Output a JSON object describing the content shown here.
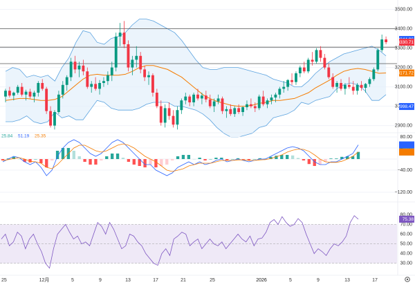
{
  "chart_data": [
    {
      "panel": "price",
      "type": "candlestick",
      "title": "",
      "y_ticks": [
        2900,
        3000,
        3100,
        3200,
        3300,
        3400,
        3500
      ],
      "ylim": [
        2870,
        3520
      ],
      "last_price": 3330.71,
      "price_labels": [
        {
          "text": "3344.96",
          "value": 3344.96,
          "color": "#2962ff"
        },
        {
          "text": "3330.71",
          "value": 3330.71,
          "color": "#f23645"
        },
        {
          "text": "3171.72",
          "value": 3171.72,
          "color": "#f57c00"
        },
        {
          "text": "2998.47",
          "value": 2998.47,
          "color": "#2962ff"
        }
      ],
      "horizontal_levels": [
        3400,
        3305,
        3220
      ],
      "candles": [
        [
          3050,
          3090,
          3020,
          3080
        ],
        [
          3080,
          3100,
          3045,
          3055
        ],
        [
          3055,
          3075,
          3030,
          3070
        ],
        [
          3070,
          3110,
          3060,
          3100
        ],
        [
          3100,
          3120,
          3050,
          3060
        ],
        [
          3060,
          3085,
          3030,
          3075
        ],
        [
          3075,
          3090,
          3040,
          3050
        ],
        [
          3050,
          3080,
          3020,
          3070
        ],
        [
          3070,
          3130,
          3050,
          3120
        ],
        [
          3120,
          3140,
          3080,
          3090
        ],
        [
          3090,
          3100,
          2960,
          2975
        ],
        [
          2975,
          3000,
          2890,
          2900
        ],
        [
          2900,
          2980,
          2880,
          2970
        ],
        [
          2970,
          3080,
          2960,
          3060
        ],
        [
          3060,
          3130,
          3040,
          3110
        ],
        [
          3110,
          3160,
          3080,
          3150
        ],
        [
          3150,
          3250,
          3130,
          3230
        ],
        [
          3230,
          3260,
          3170,
          3190
        ],
        [
          3190,
          3230,
          3150,
          3210
        ],
        [
          3210,
          3240,
          3160,
          3180
        ],
        [
          3180,
          3200,
          3090,
          3100
        ],
        [
          3100,
          3130,
          3070,
          3115
        ],
        [
          3115,
          3150,
          3080,
          3090
        ],
        [
          3090,
          3135,
          3060,
          3120
        ],
        [
          3120,
          3150,
          3100,
          3130
        ],
        [
          3130,
          3180,
          3110,
          3160
        ],
        [
          3160,
          3230,
          3130,
          3200
        ],
        [
          3200,
          3380,
          3180,
          3360
        ],
        [
          3360,
          3430,
          3310,
          3380
        ],
        [
          3380,
          3440,
          3300,
          3320
        ],
        [
          3320,
          3340,
          3180,
          3200
        ],
        [
          3200,
          3260,
          3160,
          3240
        ],
        [
          3240,
          3310,
          3200,
          3260
        ],
        [
          3260,
          3280,
          3170,
          3190
        ],
        [
          3190,
          3210,
          3130,
          3150
        ],
        [
          3150,
          3180,
          3110,
          3160
        ],
        [
          3160,
          3170,
          3050,
          3070
        ],
        [
          3070,
          3090,
          2990,
          3000
        ],
        [
          3000,
          3030,
          2900,
          2915
        ],
        [
          2915,
          3010,
          2890,
          2990
        ],
        [
          2990,
          3020,
          2930,
          2950
        ],
        [
          2950,
          2980,
          2890,
          2905
        ],
        [
          2905,
          3000,
          2880,
          2980
        ],
        [
          2980,
          3040,
          2960,
          3030
        ],
        [
          3030,
          3070,
          3010,
          3050
        ],
        [
          3050,
          3060,
          3000,
          3020
        ],
        [
          3020,
          3070,
          3000,
          3060
        ],
        [
          3060,
          3090,
          3030,
          3040
        ],
        [
          3040,
          3070,
          3010,
          3055
        ],
        [
          3055,
          3080,
          3020,
          3035
        ],
        [
          3035,
          3060,
          2990,
          3000
        ],
        [
          3000,
          3040,
          2970,
          3025
        ],
        [
          3025,
          3060,
          3010,
          3040
        ],
        [
          3040,
          3050,
          2960,
          2975
        ],
        [
          2975,
          3000,
          2940,
          2985
        ],
        [
          2985,
          3010,
          2950,
          2960
        ],
        [
          2960,
          3000,
          2945,
          2990
        ],
        [
          2990,
          3010,
          2960,
          2970
        ],
        [
          2970,
          3000,
          2950,
          2995
        ],
        [
          2995,
          3030,
          2980,
          3010
        ],
        [
          3010,
          3040,
          2990,
          3000
        ],
        [
          3000,
          3020,
          2970,
          2990
        ],
        [
          2990,
          3060,
          2980,
          3050
        ],
        [
          3050,
          3080,
          3000,
          3010
        ],
        [
          3010,
          3040,
          2990,
          3030
        ],
        [
          3030,
          3060,
          3010,
          3045
        ],
        [
          3045,
          3070,
          3020,
          3060
        ],
        [
          3060,
          3100,
          3040,
          3090
        ],
        [
          3090,
          3130,
          3070,
          3100
        ],
        [
          3100,
          3140,
          3080,
          3135
        ],
        [
          3135,
          3170,
          3110,
          3125
        ],
        [
          3125,
          3180,
          3110,
          3170
        ],
        [
          3170,
          3210,
          3150,
          3200
        ],
        [
          3200,
          3230,
          3170,
          3180
        ],
        [
          3180,
          3250,
          3170,
          3240
        ],
        [
          3240,
          3280,
          3210,
          3230
        ],
        [
          3230,
          3300,
          3220,
          3290
        ],
        [
          3290,
          3310,
          3230,
          3250
        ],
        [
          3250,
          3270,
          3190,
          3200
        ],
        [
          3200,
          3220,
          3140,
          3150
        ],
        [
          3150,
          3170,
          3090,
          3100
        ],
        [
          3100,
          3130,
          3070,
          3120
        ],
        [
          3120,
          3140,
          3080,
          3090
        ],
        [
          3090,
          3120,
          3060,
          3110
        ],
        [
          3110,
          3150,
          3090,
          3100
        ],
        [
          3100,
          3130,
          3060,
          3080
        ],
        [
          3080,
          3120,
          3060,
          3110
        ],
        [
          3110,
          3130,
          3080,
          3095
        ],
        [
          3095,
          3120,
          3070,
          3115
        ],
        [
          3115,
          3150,
          3100,
          3140
        ],
        [
          3140,
          3200,
          3130,
          3190
        ],
        [
          3190,
          3300,
          3180,
          3290
        ],
        [
          3290,
          3370,
          3280,
          3345
        ],
        [
          3345,
          3360,
          3320,
          3330.71
        ]
      ],
      "bollinger_upper": [
        3180,
        3200,
        3190,
        3150,
        3160,
        3150,
        3160,
        3130,
        3200,
        3250,
        3330,
        3390,
        3380,
        3330,
        3320,
        3350,
        3360,
        3380,
        3420,
        3450,
        3450,
        3440,
        3420,
        3400,
        3380,
        3340,
        3290,
        3240,
        3200,
        3190,
        3190,
        3200,
        3200,
        3200,
        3190,
        3180,
        3170,
        3160,
        3140,
        3130,
        3120,
        3100,
        3100,
        3130,
        3170,
        3200,
        3230,
        3250,
        3270,
        3280,
        3290,
        3300,
        3310,
        3290,
        3260
      ],
      "bollinger_basis": [
        3050,
        3060,
        3060,
        3050,
        3040,
        3030,
        3040,
        3050,
        3070,
        3100,
        3130,
        3160,
        3180,
        3180,
        3170,
        3170,
        3170,
        3180,
        3200,
        3220,
        3230,
        3230,
        3220,
        3210,
        3190,
        3170,
        3140,
        3110,
        3080,
        3060,
        3040,
        3030,
        3020,
        3020,
        3020,
        3020,
        3030,
        3030,
        3040,
        3040,
        3040,
        3040,
        3060,
        3070,
        3100,
        3120,
        3140,
        3170,
        3190,
        3200,
        3200,
        3190,
        3170,
        3160,
        3160
      ],
      "bollinger_lower": [
        2920,
        2920,
        2930,
        2950,
        2920,
        2910,
        2920,
        2970,
        2940,
        2950,
        2930,
        2930,
        2980,
        3030,
        3020,
        2990,
        2980,
        2980,
        2980,
        2990,
        3010,
        3020,
        3020,
        3020,
        3000,
        3000,
        2990,
        2980,
        2960,
        2930,
        2890,
        2860,
        2840,
        2840,
        2850,
        2860,
        2890,
        2900,
        2940,
        2950,
        2960,
        2980,
        3020,
        3010,
        3030,
        3040,
        3050,
        3090,
        3110,
        3120,
        3110,
        3080,
        3030,
        3030,
        3060
      ],
      "ma_orange": [
        3030,
        3035,
        3040,
        3040,
        3035,
        3030,
        3030,
        3035,
        3050,
        3080,
        3110,
        3140,
        3160,
        3165,
        3160,
        3160,
        3160,
        3165,
        3180,
        3200,
        3210,
        3210,
        3200,
        3190,
        3170,
        3150,
        3120,
        3090,
        3060,
        3040,
        3025,
        3015,
        3005,
        3000,
        3000,
        3005,
        3015,
        3020,
        3030,
        3030,
        3035,
        3040,
        3055,
        3070,
        3095,
        3115,
        3135,
        3160,
        3180,
        3190,
        3195,
        3190,
        3180,
        3170,
        3172
      ]
    },
    {
      "panel": "macd",
      "type": "histogram+line",
      "title": "",
      "legend_values": [
        "25.84",
        "51.19",
        "25.35"
      ],
      "legend_colors": [
        "#26a69a",
        "#2962ff",
        "#f57c00"
      ],
      "right_labels": [
        {
          "text": "51.19",
          "value": 51.19,
          "color": "#2962ff"
        },
        {
          "text": "25.84",
          "value": 25.84,
          "color": "#ffffff"
        },
        {
          "text": "25.35",
          "value": 25.35,
          "color": "#f57c00"
        }
      ],
      "y_ticks": [
        80,
        40,
        -40,
        -120
      ],
      "y_tick_labels": [
        "80.00",
        "40.00",
        "−40.00",
        "−120.00"
      ],
      "ylim": [
        -130,
        90
      ],
      "macd_line": [
        -10,
        0,
        10,
        5,
        -10,
        -20,
        -10,
        -30,
        -60,
        -40,
        10,
        40,
        60,
        70,
        60,
        40,
        20,
        10,
        20,
        40,
        60,
        70,
        60,
        40,
        20,
        0,
        -20,
        -20,
        -40,
        -50,
        -60,
        -50,
        -30,
        -20,
        -10,
        -20,
        -10,
        -20,
        -15,
        -5,
        0,
        -10,
        -5,
        0,
        -5,
        -10,
        -5,
        0,
        0,
        10,
        20,
        30,
        40,
        45,
        40,
        30,
        10,
        -10,
        -20,
        -20,
        -10,
        -10,
        0,
        10,
        20,
        51.19
      ],
      "signal_line": [
        -5,
        -2,
        2,
        5,
        0,
        -8,
        -10,
        -15,
        -30,
        -35,
        -20,
        0,
        20,
        40,
        50,
        50,
        40,
        30,
        25,
        30,
        40,
        50,
        55,
        50,
        40,
        25,
        10,
        0,
        -10,
        -25,
        -40,
        -45,
        -40,
        -35,
        -25,
        -20,
        -15,
        -15,
        -15,
        -10,
        -5,
        -5,
        -5,
        -3,
        -3,
        -5,
        -5,
        -3,
        -2,
        2,
        8,
        15,
        25,
        32,
        36,
        35,
        28,
        15,
        0,
        -10,
        -12,
        -12,
        -8,
        0,
        10,
        25.35
      ],
      "histogram": [
        -5,
        2,
        8,
        0,
        -10,
        -12,
        0,
        -15,
        -30,
        -5,
        30,
        40,
        40,
        30,
        10,
        -10,
        -20,
        -20,
        -5,
        10,
        20,
        20,
        5,
        -10,
        -20,
        -25,
        -30,
        -20,
        -30,
        -25,
        -20,
        -5,
        10,
        15,
        15,
        0,
        5,
        -5,
        0,
        5,
        5,
        -5,
        0,
        3,
        -2,
        -5,
        0,
        3,
        2,
        8,
        12,
        15,
        15,
        13,
        4,
        -5,
        -18,
        -25,
        -20,
        -10,
        2,
        2,
        8,
        10,
        10,
        25.84
      ]
    },
    {
      "panel": "rsi",
      "type": "line",
      "title": "",
      "right_label": {
        "text": "75.38",
        "value": 75.38
      },
      "y_ticks": [
        30,
        40,
        50,
        60,
        70,
        80
      ],
      "y_tick_labels": [
        "30.00",
        "40.00",
        "50.00",
        "60.00",
        "70.00",
        "80.00"
      ],
      "ylim": [
        22,
        86
      ],
      "band": [
        30,
        70
      ],
      "midline": 50,
      "values": [
        55,
        60,
        48,
        52,
        62,
        58,
        45,
        55,
        60,
        50,
        42,
        30,
        25,
        45,
        60,
        65,
        70,
        62,
        55,
        58,
        50,
        52,
        48,
        60,
        72,
        68,
        60,
        72,
        65,
        55,
        45,
        48,
        60,
        58,
        52,
        48,
        40,
        35,
        30,
        28,
        40,
        45,
        38,
        55,
        58,
        62,
        60,
        48,
        52,
        55,
        45,
        50,
        55,
        50,
        48,
        52,
        45,
        50,
        55,
        60,
        55,
        52,
        58,
        48,
        55,
        56,
        62,
        72,
        75,
        70,
        78,
        72,
        68,
        70,
        76,
        72,
        60,
        50,
        40,
        45,
        42,
        38,
        45,
        50,
        48,
        52,
        58,
        72,
        79,
        75.38
      ]
    }
  ],
  "x_axis": {
    "labels": [
      "25",
      "12月",
      "5",
      "9",
      "13",
      "17",
      "21",
      "25",
      "2026",
      "5",
      "9",
      "13",
      "17"
    ],
    "label_positions": [
      2,
      64,
      105,
      145,
      185,
      225,
      265,
      307,
      378,
      420,
      460,
      502,
      542
    ]
  },
  "colors": {
    "up": "#089981",
    "down": "#f23645",
    "band": "#5aa2df",
    "band_fill": "#e3f0fb",
    "orange": "#f57c00",
    "rsi_line": "#7e57c2",
    "rsi_band": "#efe9f7",
    "grid": "#f0f3fa",
    "axis_text": "#333333"
  },
  "icons": {
    "settings": "gear-icon"
  }
}
